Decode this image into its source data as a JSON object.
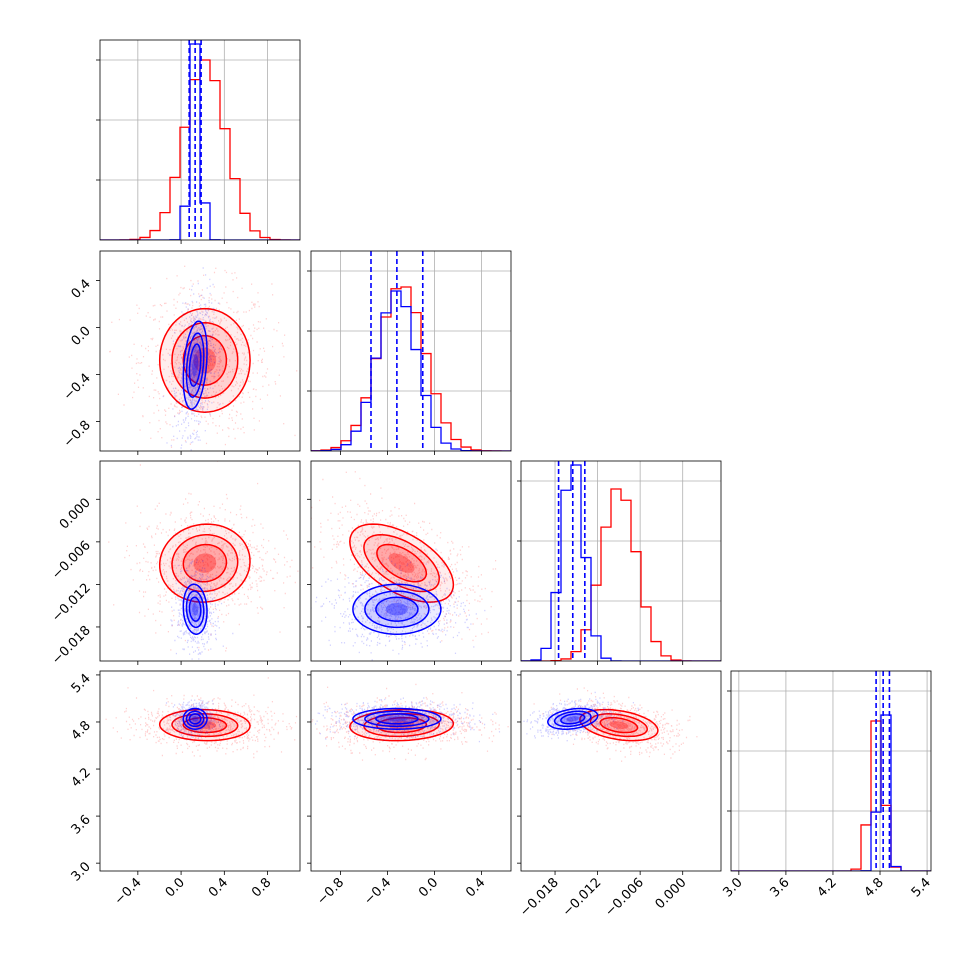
{
  "chart_data": {
    "type": "corner",
    "title": "",
    "parameters": [
      {
        "index": 0,
        "range": [
          -0.75,
          1.1
        ],
        "ticks": [
          -0.4,
          0.0,
          0.4,
          0.8
        ],
        "tick_labels": [
          "−0.4",
          "0.0",
          "0.4",
          "0.8"
        ]
      },
      {
        "index": 1,
        "range": [
          -1.05,
          0.65
        ],
        "ticks": [
          -0.8,
          -0.4,
          0.0,
          0.4
        ],
        "tick_labels": [
          "−0.8",
          "−0.4",
          "0.0",
          "0.4"
        ]
      },
      {
        "index": 2,
        "range": [
          -0.0228,
          0.0054
        ],
        "ticks": [
          -0.018,
          -0.012,
          -0.006,
          0.0
        ],
        "tick_labels": [
          "−0.018",
          "−0.012",
          "−0.006",
          "0.000"
        ]
      },
      {
        "index": 3,
        "range": [
          2.9,
          5.45
        ],
        "ticks": [
          3.0,
          3.6,
          4.2,
          4.8,
          5.4
        ],
        "tick_labels": [
          "3.0",
          "3.6",
          "4.2",
          "4.8",
          "5.4"
        ]
      }
    ],
    "series": [
      {
        "color": "#ff0000",
        "mean": [
          0.22,
          -0.28,
          -0.009,
          4.76
        ],
        "std": [
          0.19,
          0.2,
          0.0025,
          0.09
        ],
        "corr": {
          "0-1": 0.0,
          "0-2": 0.05,
          "0-3": -0.05,
          "1-2": -0.55,
          "1-3": 0.1,
          "2-3": -0.35
        },
        "hist_peak_fraction": [
          0.9,
          0.82,
          0.86,
          0.75
        ]
      },
      {
        "color": "#0000ff",
        "mean": [
          0.13,
          -0.32,
          -0.0155,
          4.84
        ],
        "std": [
          0.05,
          0.17,
          0.0016,
          0.06
        ],
        "corr": {
          "0-1": 0.3,
          "0-2": -0.1,
          "0-3": 0.0,
          "1-2": 0.0,
          "1-3": 0.0,
          "2-3": 0.3
        },
        "hist_peak_fraction": [
          0.98,
          0.8,
          0.98,
          0.78
        ]
      }
    ],
    "quantile_lines": {
      "color": "#0000ff",
      "style": "dashed",
      "values": [
        [
          0.075,
          0.13,
          0.185
        ],
        [
          -0.54,
          -0.32,
          -0.1
        ],
        [
          -0.0175,
          -0.0155,
          -0.0138
        ],
        [
          4.75,
          4.84,
          4.92
        ]
      ]
    },
    "grid": true
  }
}
